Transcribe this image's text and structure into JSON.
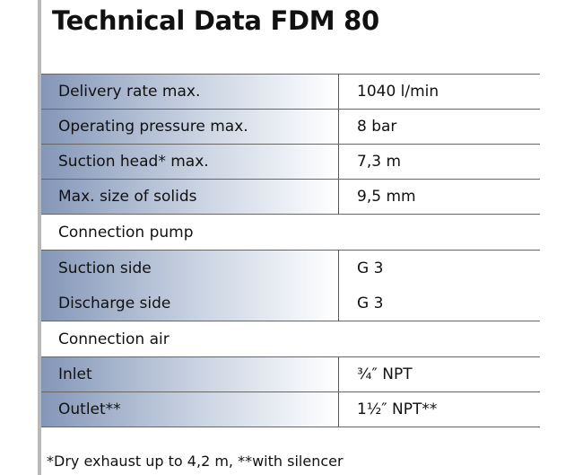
{
  "title": "Technical Data FDM 80",
  "rows": [
    {
      "label": "Delivery rate max.",
      "value": "1040 l/min"
    },
    {
      "label": "Operating pressure max.",
      "value": "8 bar"
    },
    {
      "label": "Suction head* max.",
      "value": "7,3 m"
    },
    {
      "label": "Max. size of solids",
      "value": "9,5 mm"
    }
  ],
  "connection_pump": {
    "heading": "Connection pump",
    "rows": [
      {
        "label": "Suction side",
        "value": "G 3"
      },
      {
        "label": "Discharge side",
        "value": "G 3"
      }
    ]
  },
  "connection_air": {
    "heading": "Connection air",
    "rows": [
      {
        "label": "Inlet",
        "value": "¾″ NPT"
      },
      {
        "label": "Outlet**",
        "value": "1½″ NPT**"
      }
    ]
  },
  "footnote": "*Dry exhaust up to 4,2 m, **with silencer",
  "colors": {
    "shade_dark": "#8496b8",
    "shade_light": "#ffffff",
    "rule": "#b8b8b8"
  }
}
